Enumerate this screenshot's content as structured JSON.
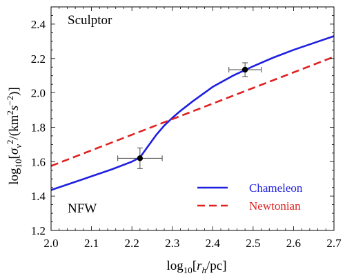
{
  "chart_data": {
    "type": "line",
    "xlabel": "log10[rh/pc]",
    "ylabel": "log10[σv²/(km²s⁻²)]",
    "xlim": [
      2.0,
      2.7
    ],
    "ylim": [
      1.2,
      2.5
    ],
    "x_ticks": [
      "2.0",
      "2.1",
      "2.2",
      "2.3",
      "2.4",
      "2.5",
      "2.6",
      "2.7"
    ],
    "y_ticks": [
      "1.2",
      "1.4",
      "1.6",
      "1.8",
      "2.0",
      "2.2",
      "2.4"
    ],
    "grid": false,
    "legend_position": "bottom-right",
    "annotations": {
      "top_left": "Sculptor",
      "bottom_left": "NFW"
    },
    "series": [
      {
        "name": "Chameleon",
        "style": "solid",
        "color": "#1f1fe0",
        "x": [
          2.0,
          2.05,
          2.1,
          2.15,
          2.2,
          2.22,
          2.24,
          2.26,
          2.28,
          2.3,
          2.32,
          2.35,
          2.4,
          2.45,
          2.5,
          2.55,
          2.6,
          2.65,
          2.7
        ],
        "y": [
          1.435,
          1.475,
          1.515,
          1.555,
          1.6,
          1.625,
          1.69,
          1.755,
          1.81,
          1.855,
          1.895,
          1.95,
          2.035,
          2.1,
          2.155,
          2.205,
          2.25,
          2.29,
          2.33
        ]
      },
      {
        "name": "Newtonian",
        "style": "dashed",
        "color": "#e01f1f",
        "x": [
          2.0,
          2.7
        ],
        "y": [
          1.575,
          2.21
        ]
      }
    ],
    "data_points": [
      {
        "x": 2.22,
        "y": 1.62,
        "x_err": 0.055,
        "y_err": 0.06
      },
      {
        "x": 2.48,
        "y": 2.135,
        "x_err": 0.04,
        "y_err": 0.04
      }
    ]
  }
}
